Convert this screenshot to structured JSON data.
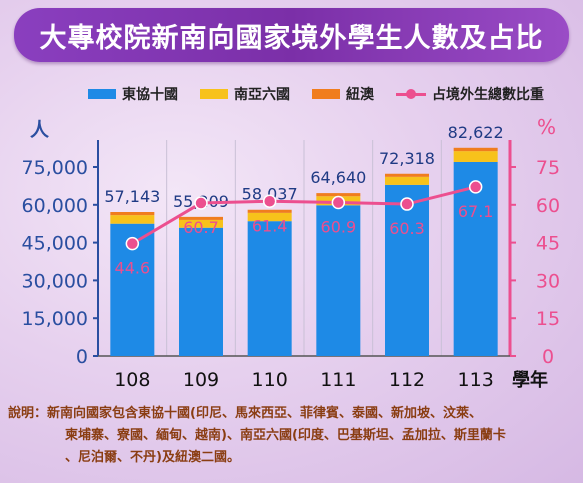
{
  "title": "大專校院新南向國家境外學生人數及占比",
  "legend": {
    "s1": "東協十國",
    "s2": "南亞六國",
    "s3": "紐澳",
    "line": "占境外生總數比重"
  },
  "colors": {
    "asean": "#1e8ae6",
    "south_asia": "#f7c21b",
    "anz": "#f07d1e",
    "line": "#ec4f8f",
    "axis_left": "#2a4ea0",
    "axis_right": "#ec4f8f"
  },
  "chart_data": {
    "type": "bar",
    "categories": [
      "108",
      "109",
      "110",
      "111",
      "112",
      "113"
    ],
    "xlabel": "學年",
    "ylabel_left": "人",
    "ylabel_right": "%",
    "ylim_left": [
      0,
      75000
    ],
    "yticks_left": [
      "0",
      "15,000",
      "30,000",
      "45,000",
      "60,000",
      "75,000"
    ],
    "ylim_right": [
      0,
      75
    ],
    "yticks_right": [
      "0",
      "15",
      "30",
      "45",
      "60",
      "75"
    ],
    "series": [
      {
        "name": "東協十國",
        "values": [
          52500,
          50900,
          53500,
          59800,
          67900,
          77000
        ]
      },
      {
        "name": "南亞六國",
        "values": [
          3400,
          3100,
          3300,
          3600,
          3200,
          4300
        ]
      },
      {
        "name": "紐澳",
        "values": [
          1243,
          1209,
          1237,
          1240,
          1218,
          1322
        ]
      }
    ],
    "totals": [
      57143,
      55209,
      58037,
      64640,
      72318,
      82622
    ],
    "total_labels": [
      "57,143",
      "55,209",
      "58,037",
      "64,640",
      "72,318",
      "82,622"
    ],
    "line": {
      "name": "占境外生總數比重",
      "values": [
        44.6,
        60.7,
        61.4,
        60.9,
        60.3,
        67.1
      ],
      "labels": [
        "44.6",
        "60.7",
        "61.4",
        "60.9",
        "60.3",
        "67.1"
      ]
    }
  },
  "note": {
    "line1": "說明：新南向國家包含東協十國(印尼、馬來西亞、菲律賓、泰國、新加坡、汶萊、",
    "line2": "柬埔寨、寮國、緬甸、越南)、南亞六國(印度、巴基斯坦、孟加拉、斯里蘭卡",
    "line3": "、尼泊爾、不丹)及紐澳二國。"
  }
}
